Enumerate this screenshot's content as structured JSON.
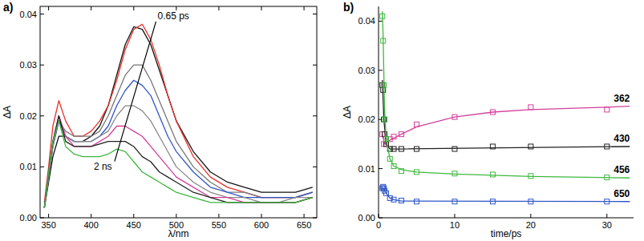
{
  "chart_data": [
    {
      "type": "line",
      "label": "a)",
      "x_label": "λ/nm",
      "y_label": "ΔA",
      "xlim": [
        340,
        665
      ],
      "ylim": [
        0,
        0.0415
      ],
      "xticks": [
        350,
        400,
        450,
        500,
        550,
        600,
        650
      ],
      "yticks": [
        {
          "value": 0,
          "label": "0.00"
        },
        {
          "value": 0.01,
          "label": "0.01"
        },
        {
          "value": 0.02,
          "label": "0.02"
        },
        {
          "value": 0.03,
          "label": "0.03"
        },
        {
          "value": 0.04,
          "label": "0.04"
        }
      ],
      "annotations": [
        {
          "text": "0.65 ps",
          "x": 478,
          "y": 0.039
        },
        {
          "text": "2 ns",
          "x": 403,
          "y": 0.0095
        }
      ],
      "x": [
        345,
        350,
        355,
        362,
        370,
        380,
        390,
        400,
        410,
        420,
        430,
        440,
        450,
        460,
        470,
        480,
        490,
        500,
        520,
        540,
        560,
        580,
        600,
        620,
        640,
        660
      ],
      "series": [
        {
          "color": "#111111",
          "values": [
            0.002,
            0.007,
            0.012,
            0.016,
            0.016,
            0.015,
            0.015,
            0.016,
            0.018,
            0.022,
            0.028,
            0.034,
            0.0375,
            0.037,
            0.034,
            0.029,
            0.024,
            0.019,
            0.013,
            0.009,
            0.007,
            0.006,
            0.005,
            0.005,
            0.005,
            0.006
          ]
        },
        {
          "color": "#e8302a",
          "values": [
            0.003,
            0.01,
            0.018,
            0.023,
            0.019,
            0.016,
            0.016,
            0.017,
            0.019,
            0.022,
            0.027,
            0.033,
            0.037,
            0.038,
            0.035,
            0.03,
            0.024,
            0.019,
            0.012,
            0.008,
            0.006,
            0.005,
            0.004,
            0.004,
            0.004,
            0.005
          ]
        },
        {
          "color": "#777777",
          "values": [
            0.002,
            0.008,
            0.014,
            0.019,
            0.017,
            0.016,
            0.016,
            0.016,
            0.017,
            0.02,
            0.024,
            0.028,
            0.03,
            0.03,
            0.027,
            0.023,
            0.019,
            0.015,
            0.01,
            0.007,
            0.005,
            0.005,
            0.004,
            0.004,
            0.004,
            0.005
          ]
        },
        {
          "color": "#2f55c8",
          "values": [
            0.002,
            0.008,
            0.014,
            0.019,
            0.016,
            0.015,
            0.015,
            0.015,
            0.016,
            0.018,
            0.022,
            0.025,
            0.027,
            0.026,
            0.024,
            0.02,
            0.016,
            0.013,
            0.009,
            0.006,
            0.005,
            0.004,
            0.004,
            0.004,
            0.004,
            0.005
          ]
        },
        {
          "color": "#888888",
          "values": [
            0.002,
            0.008,
            0.014,
            0.02,
            0.016,
            0.015,
            0.015,
            0.015,
            0.016,
            0.017,
            0.02,
            0.022,
            0.022,
            0.021,
            0.019,
            0.016,
            0.013,
            0.01,
            0.007,
            0.005,
            0.004,
            0.004,
            0.003,
            0.003,
            0.004,
            0.004
          ]
        },
        {
          "color": "#d43f9a",
          "values": [
            0.002,
            0.009,
            0.015,
            0.02,
            0.016,
            0.014,
            0.014,
            0.014,
            0.015,
            0.016,
            0.018,
            0.018,
            0.017,
            0.016,
            0.014,
            0.012,
            0.01,
            0.008,
            0.006,
            0.004,
            0.004,
            0.003,
            0.003,
            0.003,
            0.003,
            0.004
          ]
        },
        {
          "color": "#222222",
          "values": [
            0.002,
            0.009,
            0.015,
            0.02,
            0.015,
            0.014,
            0.014,
            0.014,
            0.0145,
            0.015,
            0.015,
            0.015,
            0.014,
            0.012,
            0.011,
            0.009,
            0.008,
            0.007,
            0.005,
            0.004,
            0.003,
            0.003,
            0.003,
            0.003,
            0.003,
            0.004
          ]
        },
        {
          "color": "#3fb83f",
          "values": [
            0.002,
            0.009,
            0.015,
            0.019,
            0.014,
            0.0125,
            0.012,
            0.012,
            0.012,
            0.0125,
            0.0135,
            0.013,
            0.011,
            0.009,
            0.008,
            0.007,
            0.006,
            0.005,
            0.004,
            0.003,
            0.003,
            0.003,
            0.003,
            0.003,
            0.003,
            0.004
          ]
        }
      ]
    },
    {
      "type": "scatter",
      "label": "b)",
      "x_label": "time/ps",
      "y_label": "ΔA",
      "marker": "square",
      "xlim": [
        0,
        33.5
      ],
      "ylim": [
        0,
        0.043
      ],
      "xticks": [
        0,
        10,
        20,
        30
      ],
      "yticks": [
        {
          "value": 0,
          "label": "0.00"
        },
        {
          "value": 0.01,
          "label": "0.01"
        },
        {
          "value": 0.02,
          "label": "0.02"
        },
        {
          "value": 0.03,
          "label": "0.03"
        },
        {
          "value": 0.04,
          "label": "0.04"
        }
      ],
      "series": [
        {
          "name": "362",
          "color": "#d43f9a",
          "x": [
            0.5,
            0.7,
            1,
            1.5,
            2,
            3,
            5,
            10,
            15,
            20,
            30
          ],
          "values": [
            0.017,
            0.015,
            0.0155,
            0.016,
            0.0165,
            0.017,
            0.019,
            0.0205,
            0.0215,
            0.0225,
            0.022
          ],
          "fit_x": [
            0.5,
            0.8,
            1.5,
            3,
            5,
            10,
            15,
            20,
            30,
            33
          ],
          "fit": [
            0.017,
            0.015,
            0.0158,
            0.017,
            0.0185,
            0.0205,
            0.0215,
            0.022,
            0.0225,
            0.0227
          ]
        },
        {
          "name": "430",
          "color": "#222222",
          "x": [
            0.5,
            0.6,
            0.7,
            0.8,
            1,
            1.5,
            2,
            3,
            5,
            10,
            15,
            20,
            30
          ],
          "values": [
            0.027,
            0.026,
            0.02,
            0.017,
            0.015,
            0.014,
            0.014,
            0.014,
            0.014,
            0.014,
            0.0145,
            0.0145,
            0.0145
          ],
          "fit_x": [
            0.5,
            0.7,
            1,
            1.5,
            3,
            33
          ],
          "fit": [
            0.028,
            0.02,
            0.015,
            0.014,
            0.014,
            0.0145
          ]
        },
        {
          "name": "456",
          "color": "#3fb83f",
          "x": [
            0.5,
            0.6,
            0.7,
            0.8,
            1,
            1.5,
            2,
            3,
            5,
            10,
            15,
            20,
            30
          ],
          "values": [
            0.041,
            0.036,
            0.027,
            0.02,
            0.016,
            0.012,
            0.0105,
            0.0095,
            0.0093,
            0.009,
            0.0088,
            0.0085,
            0.0082
          ],
          "fit_x": [
            0.5,
            0.6,
            0.7,
            0.8,
            1,
            1.5,
            2,
            3,
            5,
            10,
            20,
            33
          ],
          "fit": [
            0.042,
            0.037,
            0.029,
            0.022,
            0.016,
            0.012,
            0.0105,
            0.0098,
            0.0093,
            0.0089,
            0.0084,
            0.0081
          ]
        },
        {
          "name": "650",
          "color": "#2f55c8",
          "x": [
            0.5,
            0.6,
            0.7,
            0.8,
            1,
            1.5,
            2,
            3,
            5,
            10,
            15,
            20,
            30
          ],
          "values": [
            0.006,
            0.0063,
            0.006,
            0.0055,
            0.005,
            0.004,
            0.0037,
            0.0035,
            0.0033,
            0.0033,
            0.0033,
            0.0033,
            0.0033
          ],
          "fit_x": [
            0.5,
            1,
            1.5,
            2,
            3,
            33
          ],
          "fit": [
            0.0063,
            0.005,
            0.004,
            0.0037,
            0.0034,
            0.0033
          ]
        }
      ]
    }
  ]
}
